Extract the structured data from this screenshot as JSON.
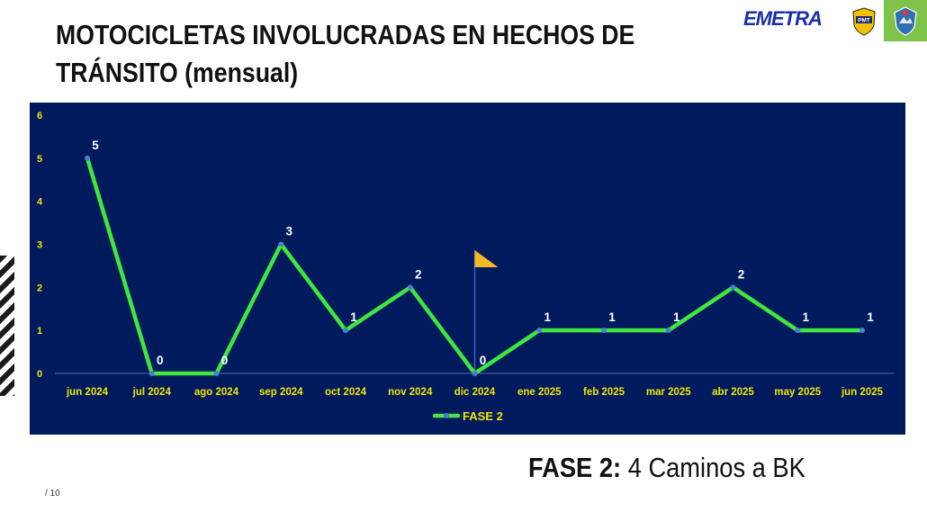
{
  "page": {
    "title": "MOTOCICLETAS INVOLUCRADAS EN HECHOS DE TRÁNSITO (mensual)",
    "footer_bold": "FASE 2:",
    "footer_text": "4 Caminos a BK",
    "page_number": "/ 10",
    "logos": {
      "emetra": "EMETRA",
      "pmt": "PMT"
    }
  },
  "colors": {
    "chart_bg": "#001a5e",
    "line": "#3ee83e",
    "marker": "#4a7fd0",
    "tick_text": "#f2e600",
    "label_text": "#ffffff",
    "flag": "#f4b820"
  },
  "chart_data": {
    "type": "line",
    "categories": [
      "jun 2024",
      "jul 2024",
      "ago 2024",
      "sep 2024",
      "oct 2024",
      "nov 2024",
      "dic 2024",
      "ene 2025",
      "feb 2025",
      "mar 2025",
      "abr 2025",
      "may 2025",
      "jun 2025"
    ],
    "series": [
      {
        "name": "FASE 2",
        "values": [
          5,
          0,
          0,
          3,
          1,
          2,
          0,
          1,
          1,
          1,
          2,
          1,
          1
        ]
      }
    ],
    "ylim": [
      0,
      6
    ],
    "yticks": [
      0,
      1,
      2,
      3,
      4,
      5,
      6
    ],
    "grid": false,
    "legend": "bottom",
    "data_labels": true,
    "annotation_flag_category": "dic 2024"
  }
}
